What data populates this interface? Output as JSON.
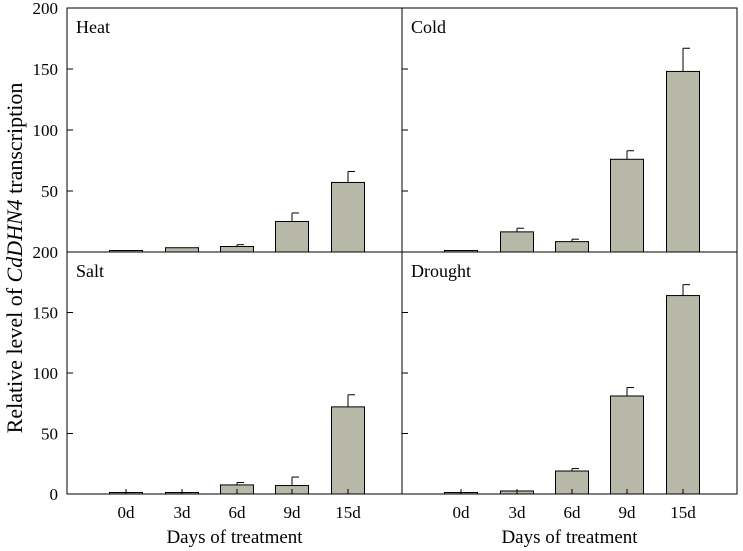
{
  "chart_data": {
    "type": "bar",
    "categories": [
      "0d",
      "3d",
      "6d",
      "9d",
      "15d"
    ],
    "xlabel": "Days of treatment",
    "ylabel": {
      "prefix": "Relative  level of  ",
      "gene": "CdDHN4",
      "suffix": "  transcription"
    },
    "ylim": [
      0,
      200
    ],
    "yticks": [
      0,
      50,
      100,
      150,
      200
    ],
    "bar_color": "#b8b8a8",
    "panels": [
      {
        "title": "Heat",
        "values": [
          1,
          3.5,
          4.5,
          25,
          57
        ],
        "errors": [
          0.3,
          0.5,
          1.5,
          7,
          9
        ]
      },
      {
        "title": "Cold",
        "values": [
          1,
          16.5,
          8.5,
          76,
          148
        ],
        "errors": [
          0.3,
          3,
          2,
          7,
          19
        ]
      },
      {
        "title": "Salt",
        "values": [
          1,
          1,
          7.5,
          7,
          72
        ],
        "errors": [
          0.3,
          0.3,
          2,
          7,
          10
        ]
      },
      {
        "title": "Drought",
        "values": [
          1,
          2.5,
          19,
          81,
          164
        ],
        "errors": [
          0.3,
          0.5,
          2,
          7,
          9
        ]
      }
    ]
  }
}
